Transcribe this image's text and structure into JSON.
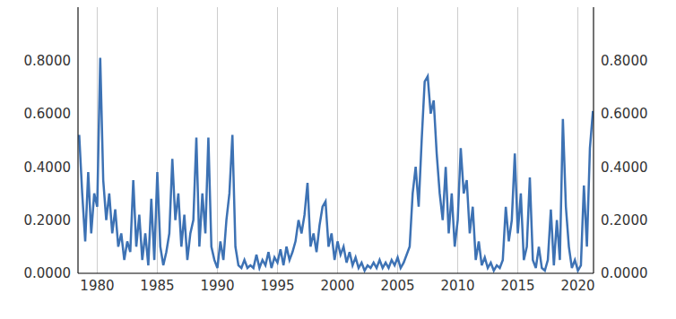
{
  "chart_data": {
    "type": "line",
    "color": "#3d72b4",
    "grid": true,
    "xlim": [
      1978.4,
      2021.3
    ],
    "xticks": [
      1980,
      1985,
      1990,
      1995,
      2000,
      2005,
      2010,
      2015,
      2020
    ],
    "ylim": [
      0,
      1
    ],
    "yticks": [
      {
        "value": 0,
        "label": "0.0000"
      },
      {
        "value": 0.2,
        "label": "0.2000"
      },
      {
        "value": 0.4,
        "label": "0.4000"
      },
      {
        "value": 0.6,
        "label": "0.6000"
      },
      {
        "value": 0.8,
        "label": "0.8000"
      }
    ],
    "y2lim": [
      0,
      1
    ],
    "y2ticks": [
      {
        "value": 0,
        "label": "0.0000"
      },
      {
        "value": 0.2,
        "label": "0.2000"
      },
      {
        "value": 0.4,
        "label": "0.4000"
      },
      {
        "value": 0.6,
        "label": "0.6000"
      },
      {
        "value": 0.8,
        "label": "0.8000"
      }
    ],
    "x": [
      1978.5,
      1978.75,
      1979,
      1979.25,
      1979.5,
      1979.75,
      1980,
      1980.25,
      1980.5,
      1980.75,
      1981,
      1981.25,
      1981.5,
      1981.75,
      1982,
      1982.25,
      1982.5,
      1982.75,
      1983,
      1983.25,
      1983.5,
      1983.75,
      1984,
      1984.25,
      1984.5,
      1984.75,
      1985,
      1985.25,
      1985.5,
      1985.75,
      1986,
      1986.25,
      1986.5,
      1986.75,
      1987,
      1987.25,
      1987.5,
      1987.75,
      1988,
      1988.25,
      1988.5,
      1988.75,
      1989,
      1989.25,
      1989.5,
      1989.75,
      1990,
      1990.25,
      1990.5,
      1990.75,
      1991,
      1991.25,
      1991.5,
      1991.75,
      1992,
      1992.25,
      1992.5,
      1992.75,
      1993,
      1993.25,
      1993.5,
      1993.75,
      1994,
      1994.25,
      1994.5,
      1994.75,
      1995,
      1995.25,
      1995.5,
      1995.75,
      1996,
      1996.25,
      1996.5,
      1996.75,
      1997,
      1997.25,
      1997.5,
      1997.75,
      1998,
      1998.25,
      1998.5,
      1998.75,
      1999,
      1999.25,
      1999.5,
      1999.75,
      2000,
      2000.25,
      2000.5,
      2000.75,
      2001,
      2001.25,
      2001.5,
      2001.75,
      2002,
      2002.25,
      2002.5,
      2002.75,
      2003,
      2003.25,
      2003.5,
      2003.75,
      2004,
      2004.25,
      2004.5,
      2004.75,
      2005,
      2005.25,
      2005.5,
      2005.75,
      2006,
      2006.25,
      2006.5,
      2006.75,
      2007,
      2007.25,
      2007.5,
      2007.75,
      2008,
      2008.25,
      2008.5,
      2008.75,
      2009,
      2009.25,
      2009.5,
      2009.75,
      2010,
      2010.25,
      2010.5,
      2010.75,
      2011,
      2011.25,
      2011.5,
      2011.75,
      2012,
      2012.25,
      2012.5,
      2012.75,
      2013,
      2013.25,
      2013.5,
      2013.75,
      2014,
      2014.25,
      2014.5,
      2014.75,
      2015,
      2015.25,
      2015.5,
      2015.75,
      2016,
      2016.25,
      2016.5,
      2016.75,
      2017,
      2017.25,
      2017.5,
      2017.75,
      2018,
      2018.25,
      2018.5,
      2018.75,
      2019,
      2019.25,
      2019.5,
      2019.75,
      2020,
      2020.25,
      2020.5,
      2020.75,
      2021,
      2021.25
    ],
    "values": [
      0.52,
      0.3,
      0.12,
      0.38,
      0.15,
      0.3,
      0.25,
      0.81,
      0.35,
      0.2,
      0.3,
      0.15,
      0.24,
      0.1,
      0.15,
      0.05,
      0.12,
      0.08,
      0.35,
      0.1,
      0.22,
      0.05,
      0.15,
      0.03,
      0.28,
      0.05,
      0.38,
      0.1,
      0.03,
      0.08,
      0.15,
      0.43,
      0.2,
      0.3,
      0.1,
      0.22,
      0.05,
      0.15,
      0.2,
      0.51,
      0.1,
      0.3,
      0.15,
      0.51,
      0.1,
      0.05,
      0.02,
      0.12,
      0.05,
      0.2,
      0.3,
      0.52,
      0.1,
      0.03,
      0.02,
      0.05,
      0.02,
      0.03,
      0.02,
      0.07,
      0.02,
      0.05,
      0.03,
      0.08,
      0.02,
      0.06,
      0.04,
      0.09,
      0.03,
      0.1,
      0.05,
      0.08,
      0.12,
      0.2,
      0.15,
      0.22,
      0.34,
      0.1,
      0.15,
      0.08,
      0.18,
      0.25,
      0.27,
      0.1,
      0.15,
      0.05,
      0.12,
      0.07,
      0.1,
      0.04,
      0.08,
      0.03,
      0.06,
      0.02,
      0.04,
      0.01,
      0.03,
      0.02,
      0.04,
      0.02,
      0.05,
      0.02,
      0.04,
      0.02,
      0.05,
      0.03,
      0.06,
      0.02,
      0.04,
      0.07,
      0.1,
      0.3,
      0.4,
      0.25,
      0.5,
      0.72,
      0.74,
      0.6,
      0.65,
      0.45,
      0.3,
      0.2,
      0.4,
      0.15,
      0.3,
      0.1,
      0.2,
      0.47,
      0.3,
      0.35,
      0.15,
      0.25,
      0.05,
      0.12,
      0.03,
      0.06,
      0.02,
      0.04,
      0.01,
      0.03,
      0.02,
      0.05,
      0.25,
      0.12,
      0.2,
      0.45,
      0.15,
      0.3,
      0.05,
      0.1,
      0.36,
      0.05,
      0.02,
      0.1,
      0.02,
      0.01,
      0.05,
      0.24,
      0.03,
      0.2,
      0.05,
      0.58,
      0.25,
      0.1,
      0.02,
      0.05,
      0.01,
      0.03,
      0.33,
      0.1,
      0.47,
      0.61
    ]
  }
}
